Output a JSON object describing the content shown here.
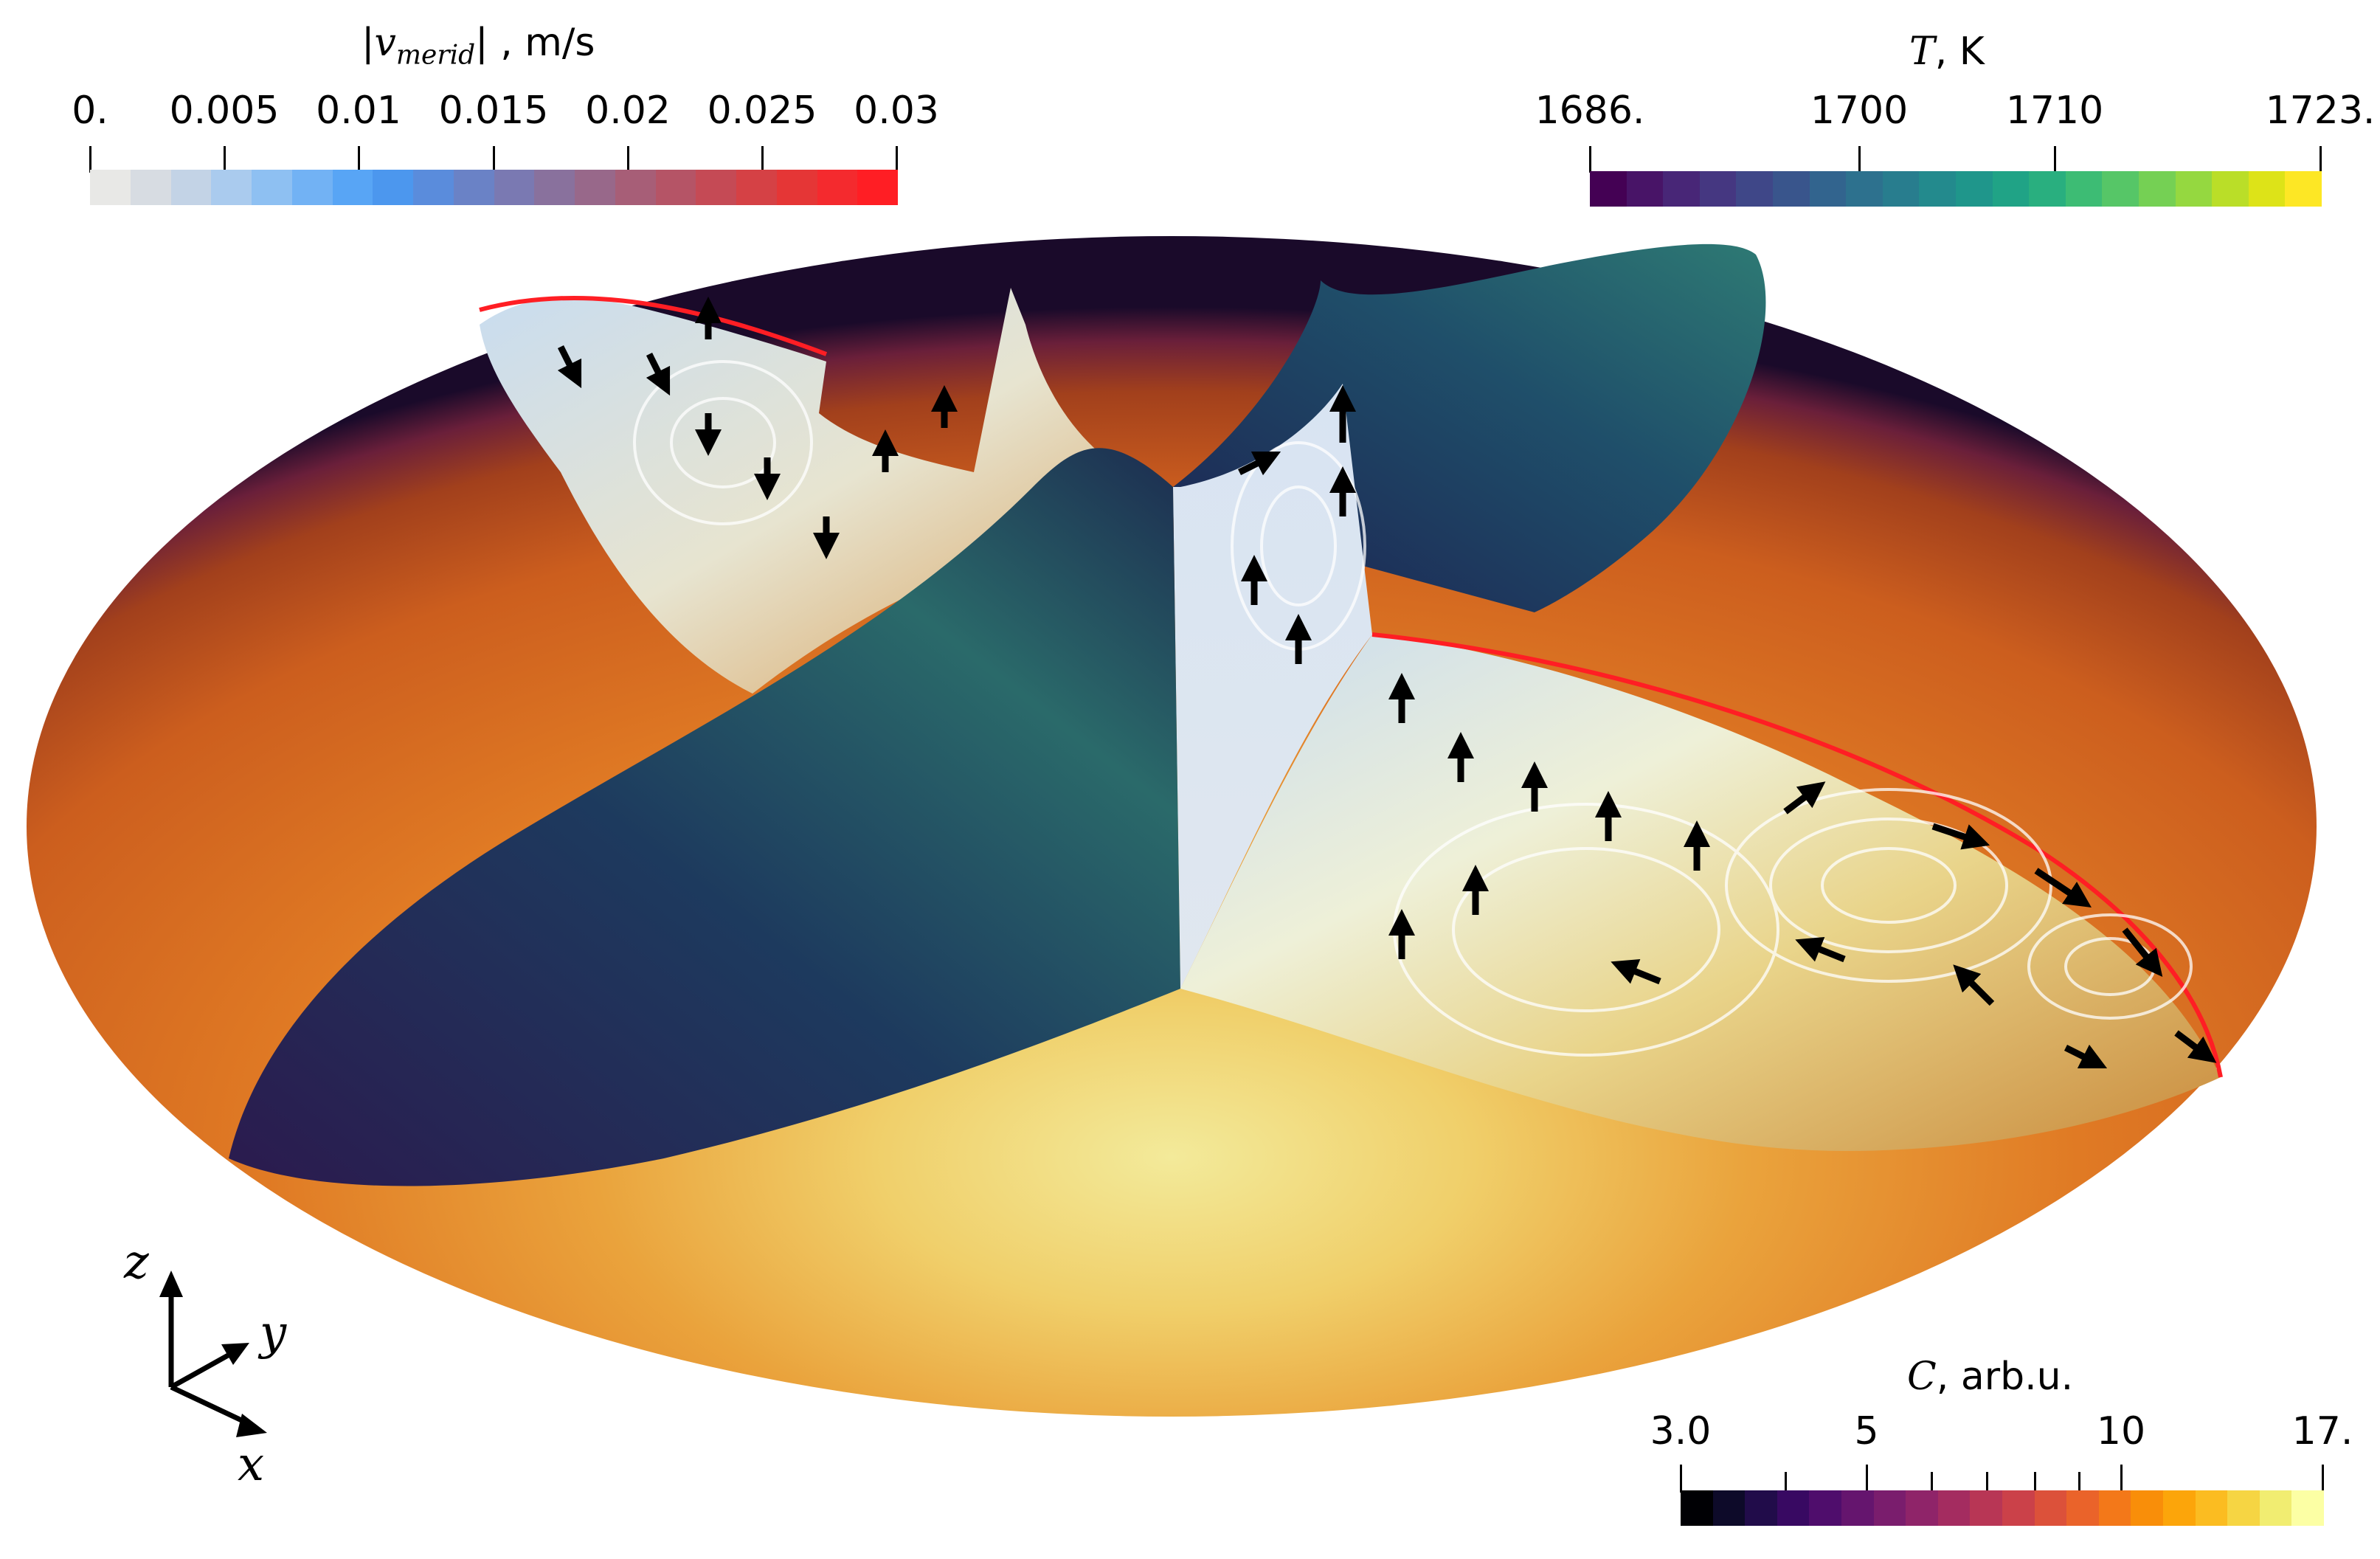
{
  "colorbars": {
    "velocity": {
      "title_prefix": "|",
      "title_symbol": "v",
      "title_sub": "merid",
      "title_suffix": "| , m/s",
      "ticks": [
        "0.",
        "0.005",
        "0.01",
        "0.015",
        "0.02",
        "0.025",
        "0.03"
      ],
      "colors": [
        "#e8e8e6",
        "#d7dce2",
        "#c3d3e6",
        "#aacbee",
        "#8ec0f2",
        "#72b2f4",
        "#58a5f5",
        "#4c97ee",
        "#5a8cdc",
        "#6a82c6",
        "#7a79b2",
        "#89719d",
        "#98688a",
        "#a75e77",
        "#b55466",
        "#c54a55",
        "#d54145",
        "#e53636",
        "#f42a2e",
        "#ff1e24"
      ]
    },
    "temperature": {
      "title_var": "T",
      "title_unit": ", K",
      "ticks": [
        "1686.",
        "1700",
        "1710",
        "1723."
      ],
      "colors": [
        "#440154",
        "#481467",
        "#482677",
        "#453781",
        "#3f4788",
        "#39558c",
        "#32648e",
        "#2d718e",
        "#287d8e",
        "#238a8d",
        "#1f968b",
        "#20a386",
        "#29af7f",
        "#3dbc74",
        "#56c667",
        "#75d054",
        "#95d840",
        "#bade28",
        "#dde318",
        "#fde725"
      ]
    },
    "concentration": {
      "title_var": "C",
      "title_unit": ", arb.u.",
      "ticks": [
        "3.0",
        "5",
        "10",
        "17."
      ],
      "colors": [
        "#000004",
        "#0d0a29",
        "#210c4a",
        "#380962",
        "#4f0d6c",
        "#65156e",
        "#7a1d6d",
        "#8f2469",
        "#a42c60",
        "#b83655",
        "#cb4149",
        "#dc513a",
        "#ea632a",
        "#f37819",
        "#f98e09",
        "#fca50a",
        "#fbbc21",
        "#f6d543",
        "#f1ed71",
        "#fcffa4"
      ]
    }
  },
  "axes": {
    "z": "z",
    "y": "y",
    "x": "x"
  }
}
